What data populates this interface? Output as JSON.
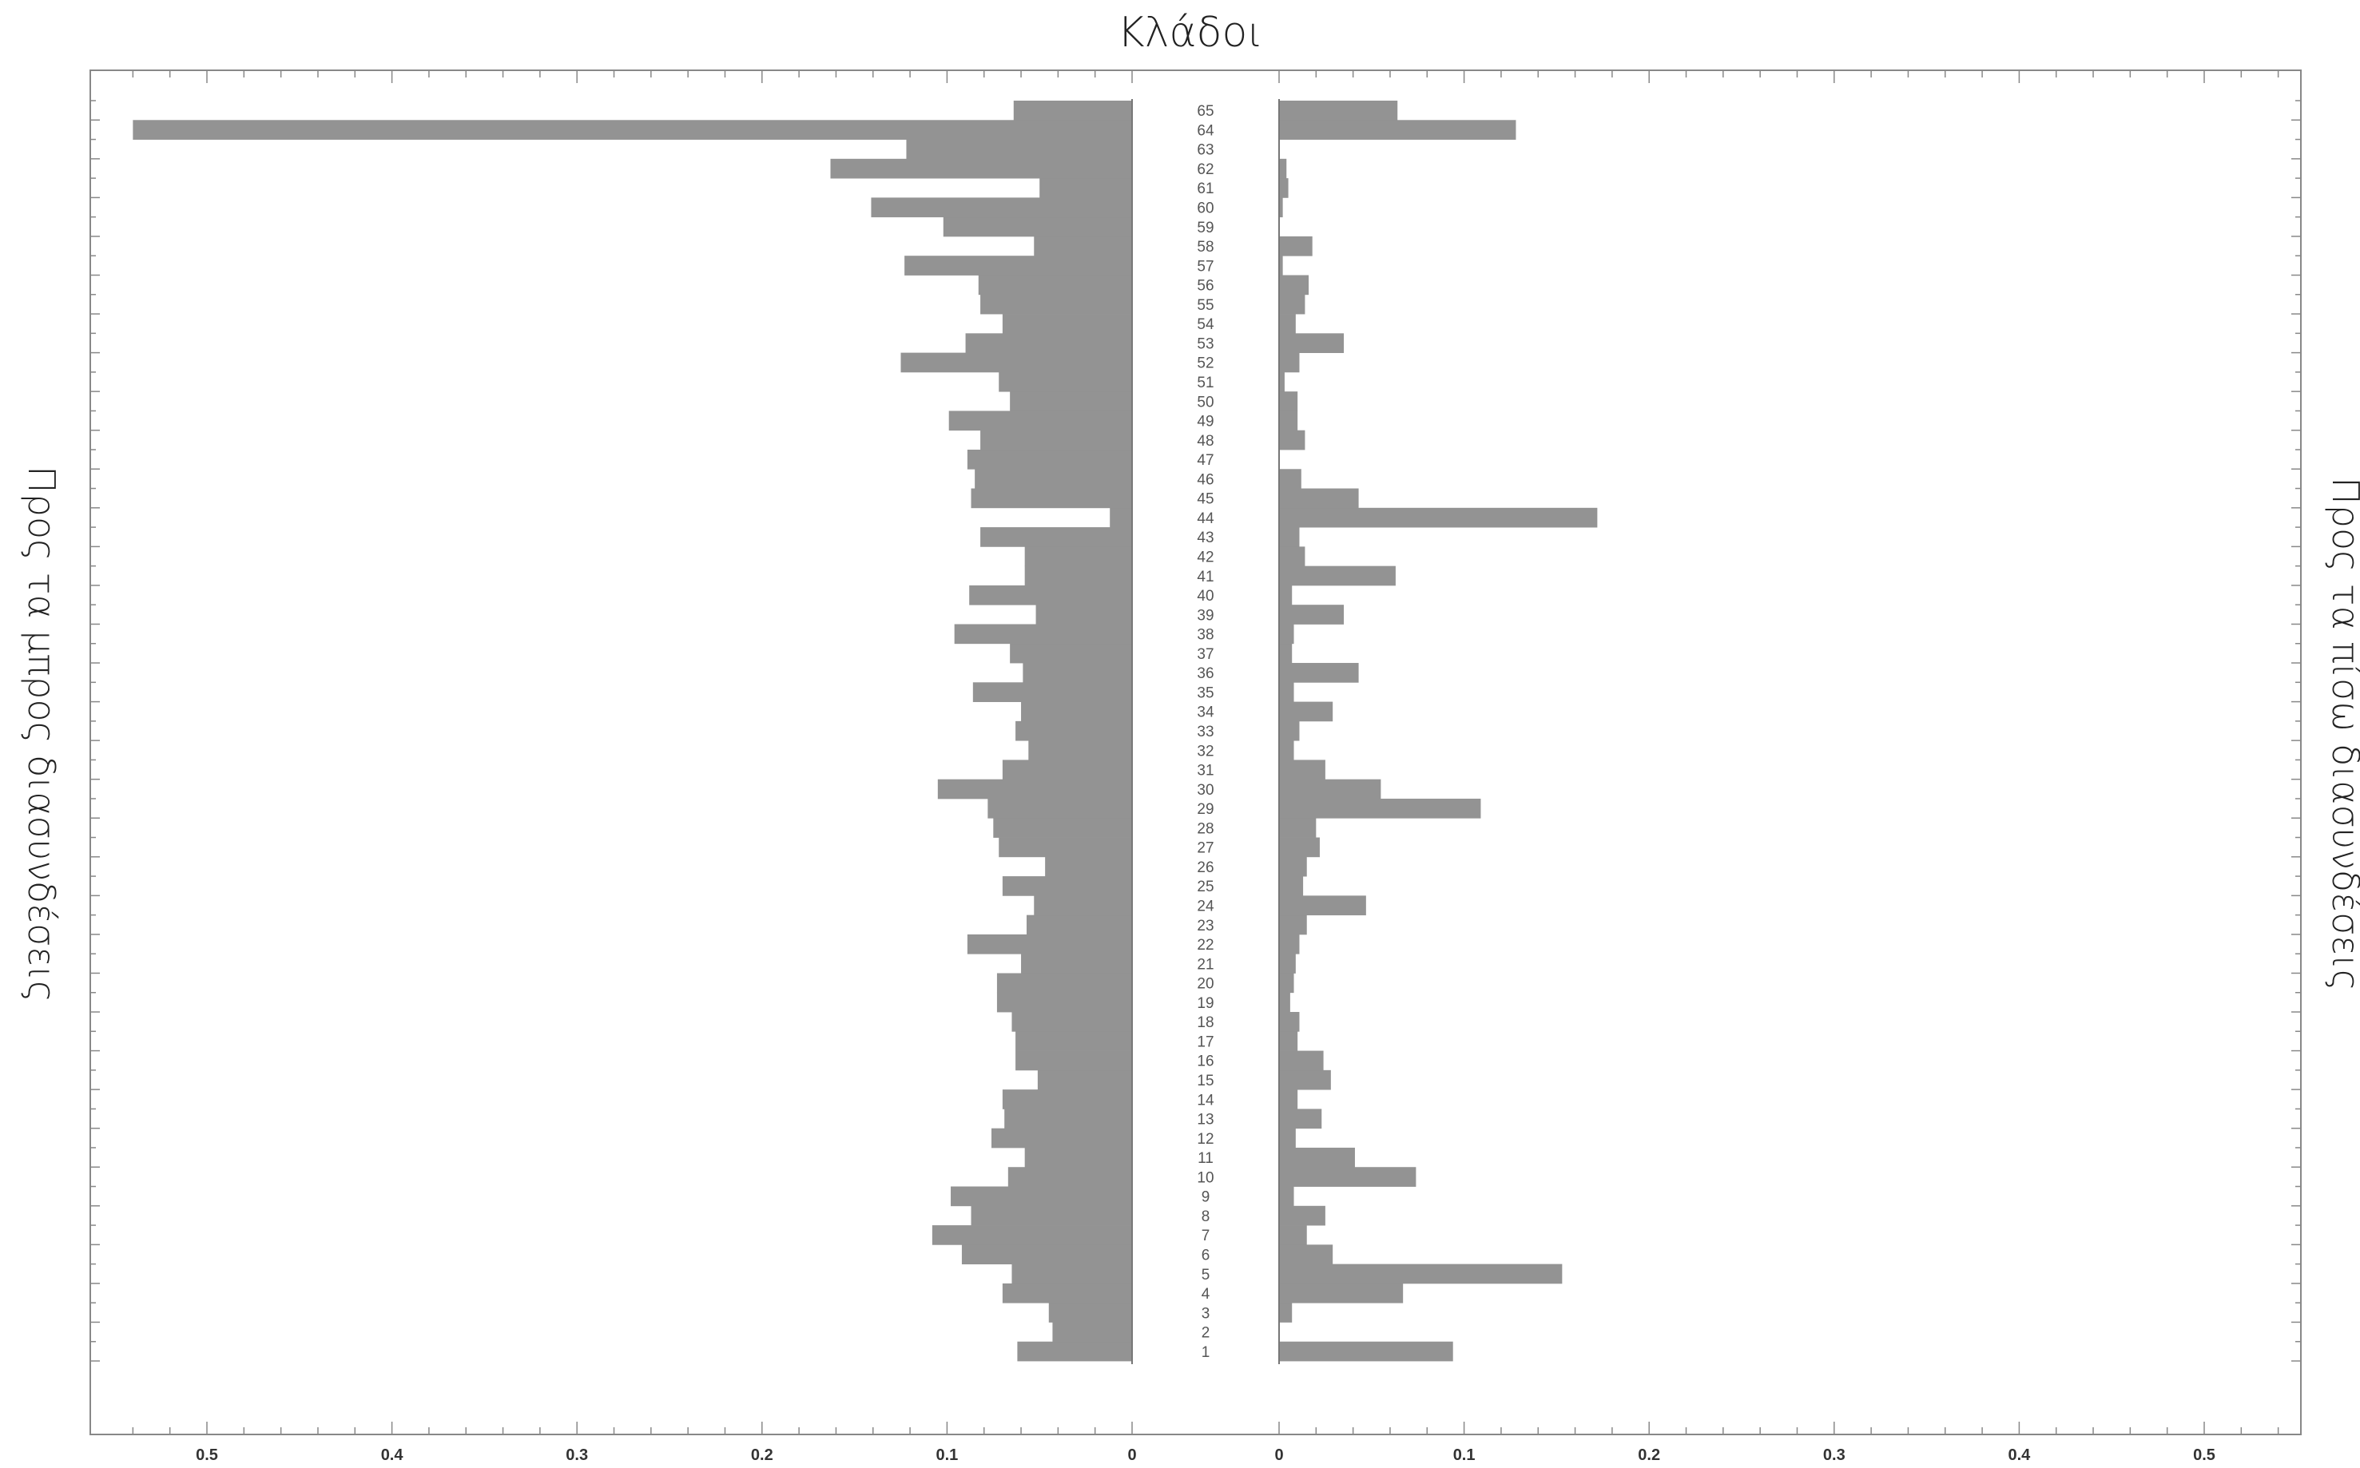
{
  "chart_data": {
    "type": "bar",
    "orientation": "horizontal-butterfly",
    "title": "Κλάδοι",
    "left_label": "Προς τα μπρος διασυνδέσεις",
    "right_label": "Προς τα πίσω διασυνδέσεις",
    "xlim": [
      0,
      0.55
    ],
    "x_ticks": [
      "0",
      "0.1",
      "0.2",
      "0.3",
      "0.4",
      "0.5"
    ],
    "categories": [
      "1",
      "2",
      "3",
      "4",
      "5",
      "6",
      "7",
      "8",
      "9",
      "10",
      "11",
      "12",
      "13",
      "14",
      "15",
      "16",
      "17",
      "18",
      "19",
      "20",
      "21",
      "22",
      "23",
      "24",
      "25",
      "26",
      "27",
      "28",
      "29",
      "30",
      "31",
      "32",
      "33",
      "34",
      "35",
      "36",
      "37",
      "38",
      "39",
      "40",
      "41",
      "42",
      "43",
      "44",
      "45",
      "46",
      "47",
      "48",
      "49",
      "50",
      "51",
      "52",
      "53",
      "54",
      "55",
      "56",
      "57",
      "58",
      "59",
      "60",
      "61",
      "62",
      "63",
      "64",
      "65"
    ],
    "series": [
      {
        "side": "left",
        "values": [
          0.062,
          0.043,
          0.045,
          0.07,
          0.065,
          0.092,
          0.108,
          0.087,
          0.098,
          0.067,
          0.058,
          0.076,
          0.069,
          0.07,
          0.051,
          0.063,
          0.063,
          0.065,
          0.073,
          0.073,
          0.06,
          0.089,
          0.057,
          0.053,
          0.07,
          0.047,
          0.072,
          0.075,
          0.078,
          0.105,
          0.07,
          0.056,
          0.063,
          0.06,
          0.086,
          0.059,
          0.066,
          0.096,
          0.052,
          0.088,
          0.058,
          0.058,
          0.082,
          0.012,
          0.087,
          0.085,
          0.089,
          0.082,
          0.099,
          0.066,
          0.072,
          0.125,
          0.09,
          0.07,
          0.082,
          0.083,
          0.123,
          0.053,
          0.102,
          0.141,
          0.05,
          0.163,
          0.122,
          0.54,
          0.064
        ]
      },
      {
        "side": "right",
        "values": [
          0.094,
          0.0,
          0.007,
          0.067,
          0.153,
          0.029,
          0.015,
          0.025,
          0.008,
          0.074,
          0.041,
          0.009,
          0.023,
          0.01,
          0.028,
          0.024,
          0.01,
          0.011,
          0.006,
          0.008,
          0.009,
          0.011,
          0.015,
          0.047,
          0.013,
          0.015,
          0.022,
          0.02,
          0.109,
          0.055,
          0.025,
          0.008,
          0.011,
          0.029,
          0.008,
          0.043,
          0.007,
          0.008,
          0.035,
          0.007,
          0.063,
          0.014,
          0.011,
          0.172,
          0.043,
          0.012,
          0.0,
          0.014,
          0.01,
          0.01,
          0.003,
          0.011,
          0.035,
          0.009,
          0.014,
          0.016,
          0.002,
          0.018,
          0.0,
          0.002,
          0.005,
          0.004,
          0.0,
          0.128,
          0.064
        ]
      }
    ],
    "bar_color": "#939393",
    "grid": false,
    "legend": "none"
  }
}
